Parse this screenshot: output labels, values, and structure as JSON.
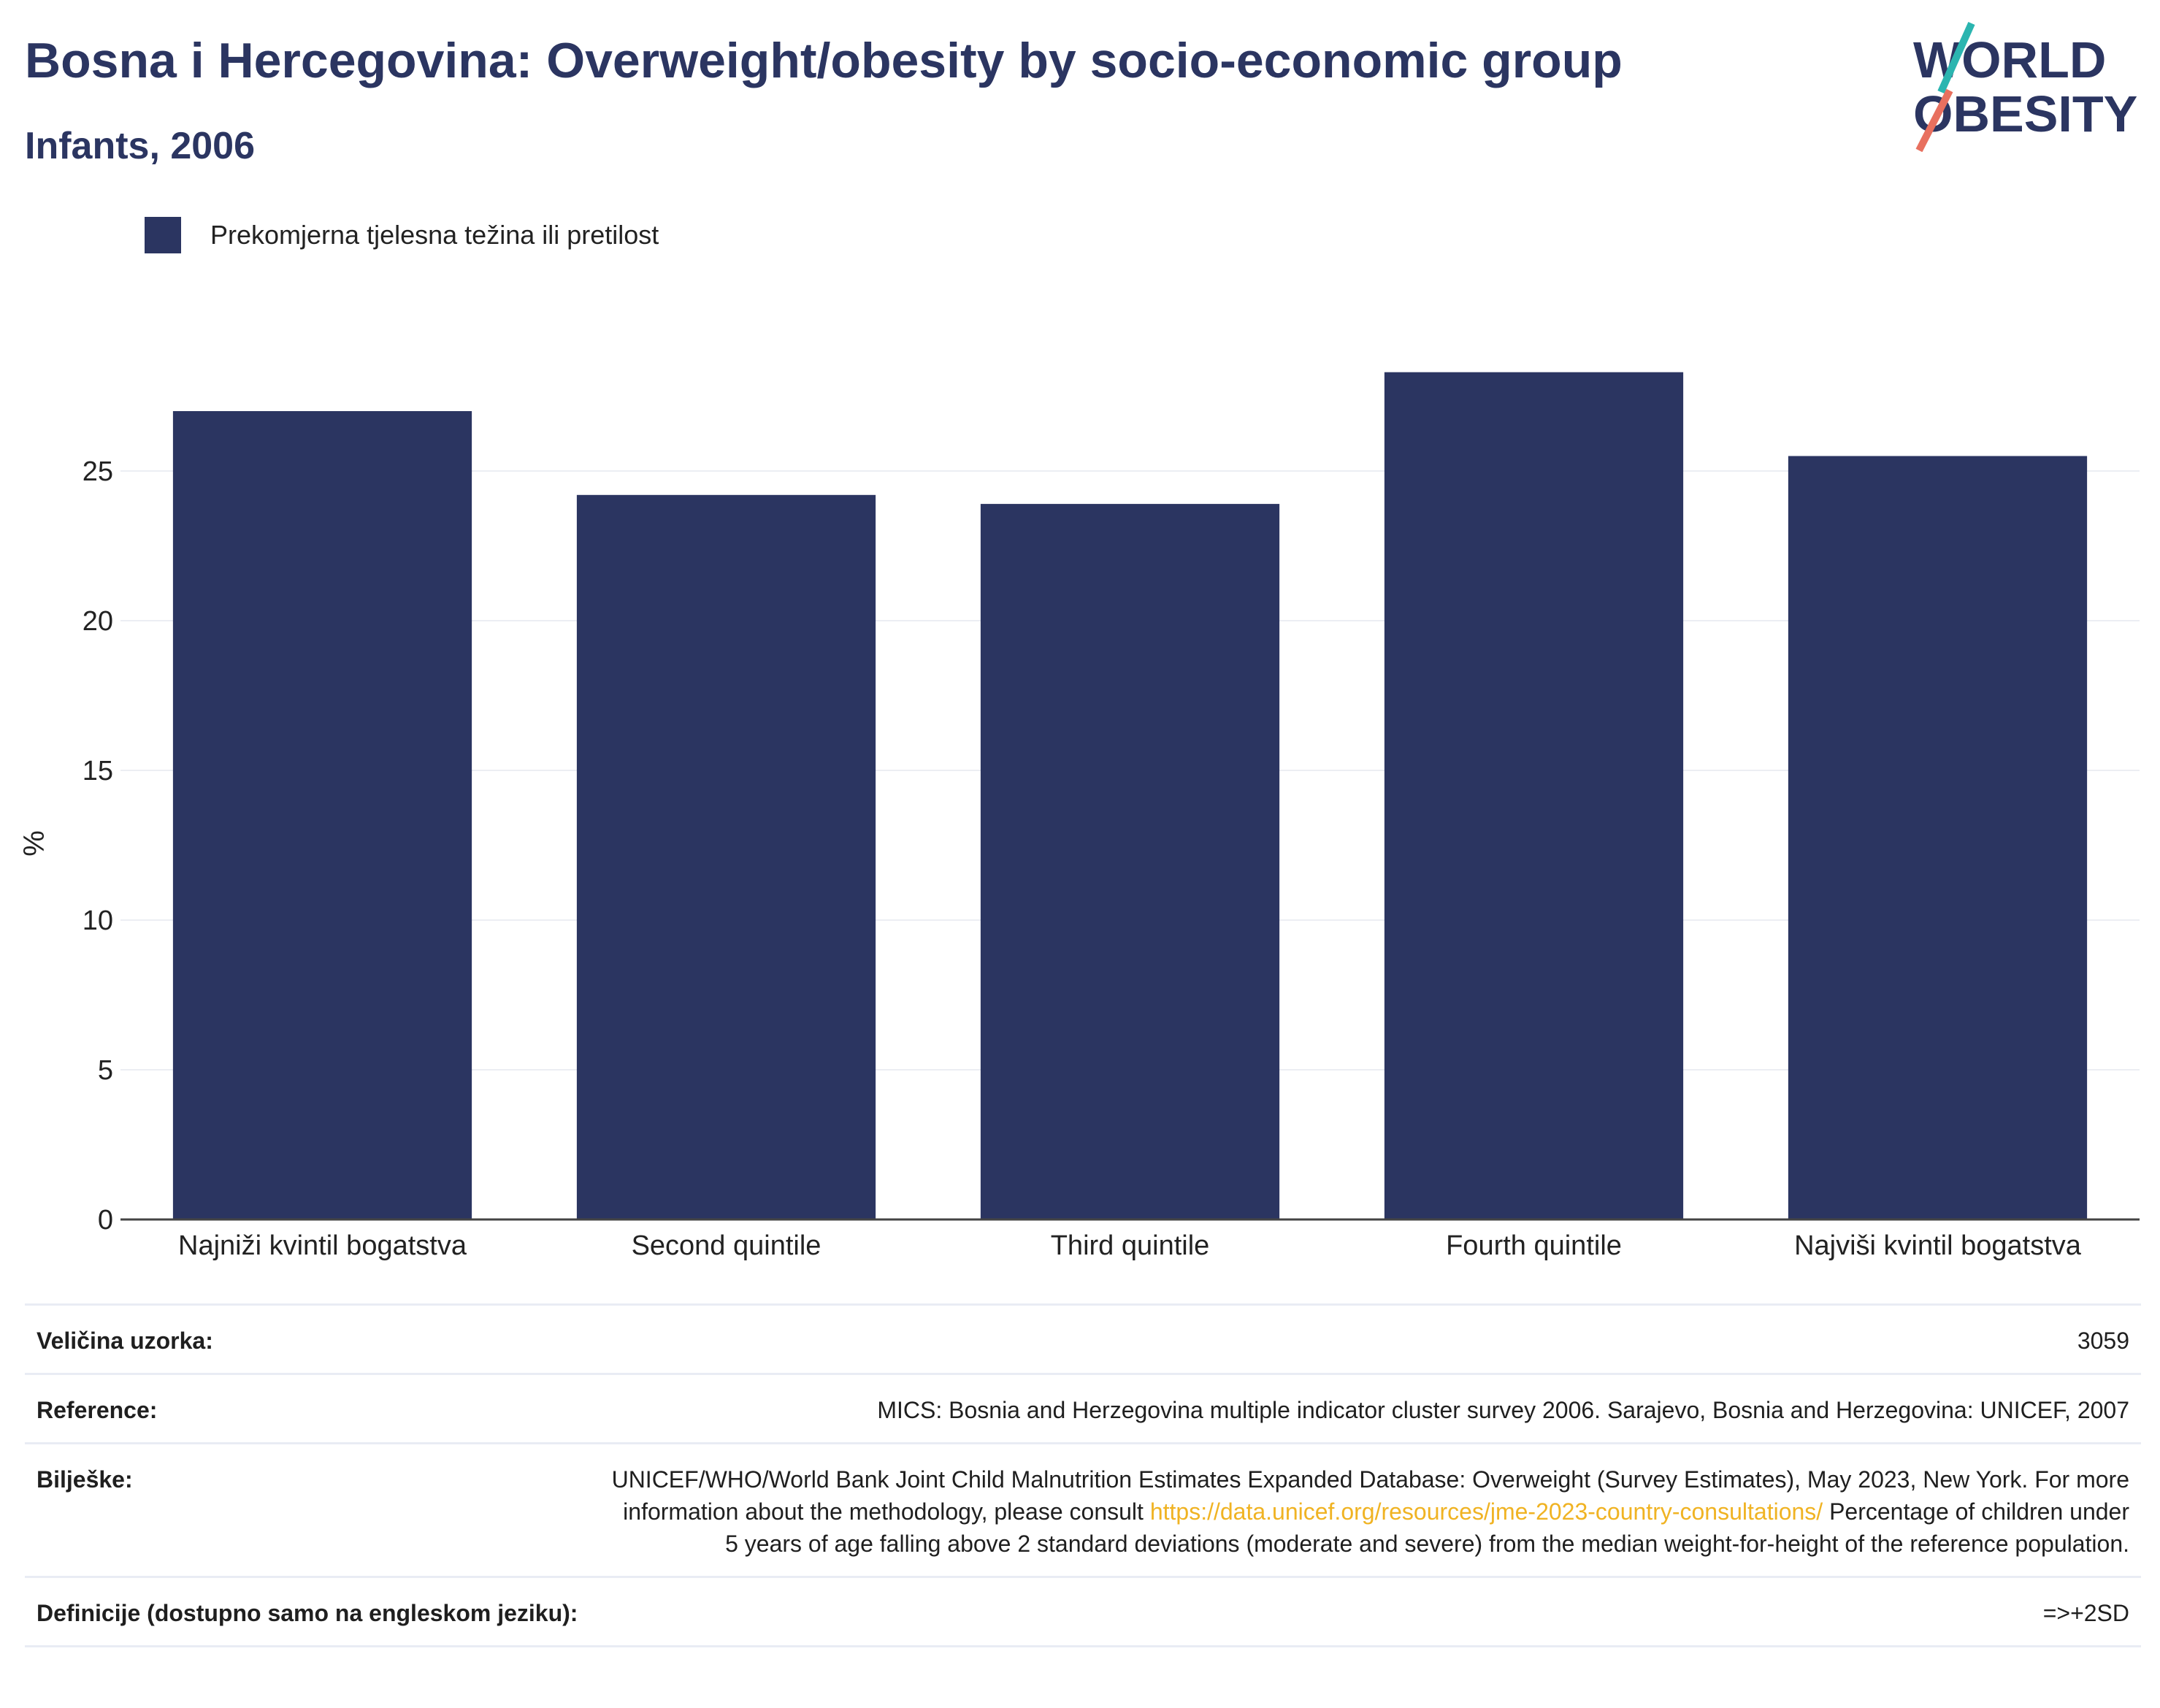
{
  "header": {
    "title": "Bosna i Hercegovina: Overweight/obesity by socio-economic group",
    "subtitle": "Infants, 2006"
  },
  "logo": {
    "line1": "WORLD",
    "line2": "OBESITY",
    "colors": {
      "navy": "#2b3561",
      "teal": "#2bb5b0",
      "coral": "#e8705f"
    }
  },
  "chart_data": {
    "type": "bar",
    "categories": [
      "Najniži kvintil bogatstva",
      "Second quintile",
      "Third quintile",
      "Fourth quintile",
      "Najviši kvintil bogatstva"
    ],
    "series": [
      {
        "name": "Prekomjerna tjelesna težina ili pretilost",
        "values": [
          27.0,
          24.2,
          23.9,
          28.3,
          25.5
        ],
        "color": "#2b3561"
      }
    ],
    "ylabel": "%",
    "ylim": [
      0,
      30
    ],
    "yticks": [
      0,
      5,
      10,
      15,
      20,
      25
    ],
    "grid": true,
    "legend": "top-left"
  },
  "info": {
    "rows": [
      {
        "label": "Veličina uzorka:",
        "value": "3059"
      },
      {
        "label": "Reference:",
        "value": "MICS: Bosnia and Herzegovina multiple indicator cluster survey 2006. Sarajevo, Bosnia and Herzegovina: UNICEF, 2007"
      },
      {
        "label": "Bilješke:",
        "value_pre": "UNICEF/WHO/World Bank Joint Child Malnutrition Estimates Expanded Database: Overweight (Survey Estimates), May 2023, New York. For more information about the methodology, please consult ",
        "link": "https://data.unicef.org/resources/jme-2023-country-consultations/",
        "value_post": " Percentage of children under 5 years of age falling above 2 standard deviations (moderate and severe) from the median weight-for-height of the reference population."
      },
      {
        "label": "Definicije (dostupno samo na engleskom jeziku):",
        "value": "=>+2SD"
      }
    ]
  }
}
